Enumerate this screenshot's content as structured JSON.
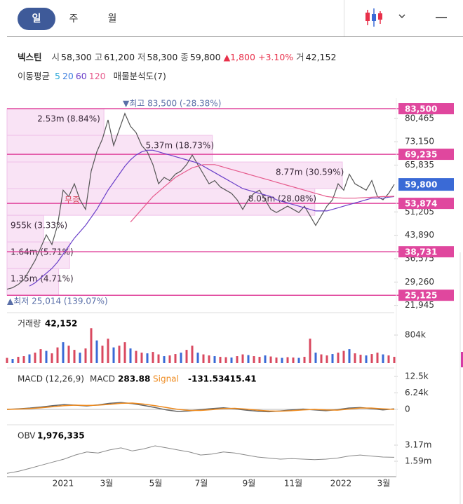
{
  "header": {
    "tabs": [
      "일",
      "주",
      "월"
    ],
    "quote": {
      "name": "넥스틴",
      "fields": [
        {
          "label": "시",
          "value": "58,300"
        },
        {
          "label": "고",
          "value": "61,200"
        },
        {
          "label": "저",
          "value": "58,300"
        },
        {
          "label": "종",
          "value": "59,800"
        }
      ],
      "change": "▲1,800",
      "change_pct": "+3.10%",
      "volume_label": "거",
      "volume": "42,152"
    },
    "moving_average": {
      "label": "이동평균",
      "periods": [
        {
          "label": "5",
          "color": "#2aa7d8"
        },
        {
          "label": "20",
          "color": "#3f80e0"
        },
        {
          "label": "60",
          "color": "#6a3fc9"
        },
        {
          "label": "120",
          "color": "#e65a8c"
        }
      ],
      "profile_label": "매물분석도(7)"
    }
  },
  "chart_data": [
    {
      "type": "line",
      "name": "price",
      "ylim": [
        21000,
        85700
      ],
      "yticks": [
        {
          "value": 80465,
          "label": "80,465"
        },
        {
          "value": 73150,
          "label": "73,150"
        },
        {
          "value": 65835,
          "label": "65,835"
        },
        {
          "value": 51205,
          "label": "51,205"
        },
        {
          "value": 43890,
          "label": "43,890"
        },
        {
          "value": 36575,
          "label": "36,575"
        },
        {
          "value": 29260,
          "label": "29,260"
        },
        {
          "value": 21945,
          "label": "21,945"
        }
      ],
      "levels": [
        {
          "value": 83500,
          "label": "83,500"
        },
        {
          "value": 69235,
          "label": "69,235"
        },
        {
          "value": 53874,
          "label": "53,874"
        },
        {
          "value": 38731,
          "label": "38,731"
        },
        {
          "value": 25125,
          "label": "25,125"
        }
      ],
      "level_color": "#e0479e",
      "current": {
        "value": 59800,
        "label": "59,800",
        "color": "#3a6ad6"
      },
      "profile": [
        {
          "label": "2.53m (8.84%)",
          "percent": 8.84
        },
        {
          "label": "5.37m (18.73%)",
          "percent": 18.73
        },
        {
          "label": "8.77m (30.59%)",
          "percent": 30.59
        },
        {
          "label": "8.05m (28.08%)",
          "percent": 28.08
        },
        {
          "label": "955k (3.33%)",
          "percent": 3.33
        },
        {
          "label": "1.64m (5.71%)",
          "percent": 5.71
        },
        {
          "label": "1.35m (4.71%)",
          "percent": 4.71
        }
      ],
      "annotations": {
        "high": "▼최고 83,500 (-28.38%)",
        "low": "▲최저 25,014 (139.07%)",
        "event": "무증"
      },
      "series": [
        {
          "name": "price",
          "color": "#555555",
          "values": [
            27000,
            27500,
            28500,
            30000,
            33000,
            36000,
            40000,
            44000,
            41000,
            47000,
            58000,
            56000,
            60000,
            55000,
            52000,
            64000,
            70000,
            74000,
            80000,
            72000,
            77000,
            82000,
            78000,
            76000,
            72000,
            70000,
            66000,
            60000,
            62000,
            61000,
            63000,
            64000,
            66000,
            69000,
            66000,
            63000,
            60000,
            61000,
            59000,
            58000,
            57000,
            55000,
            52000,
            55000,
            57000,
            58000,
            55000,
            52000,
            51000,
            52000,
            53000,
            52000,
            51000,
            53000,
            50000,
            47000,
            50000,
            53000,
            55000,
            60000,
            58000,
            63000,
            60000,
            59000,
            58000,
            61000,
            56000,
            55000,
            57000,
            59800
          ]
        },
        {
          "name": "ma60",
          "color": "#6a3fc9",
          "values": [
            null,
            null,
            null,
            null,
            28000,
            29000,
            30500,
            32000,
            33500,
            35500,
            38000,
            40500,
            43000,
            45000,
            47000,
            49500,
            52000,
            55000,
            58000,
            60500,
            63000,
            65500,
            67500,
            69000,
            70000,
            70500,
            70500,
            70000,
            69500,
            69000,
            68500,
            68000,
            67500,
            67000,
            66500,
            65500,
            64500,
            63500,
            62500,
            61500,
            60500,
            59500,
            58500,
            58000,
            57500,
            57000,
            56500,
            56000,
            55000,
            54500,
            54000,
            53500,
            53000,
            52500,
            52000,
            51500,
            51500,
            51500,
            52000,
            52500,
            53000,
            53500,
            54000,
            54500,
            55000,
            55500,
            55500,
            55500,
            55800,
            56000
          ]
        },
        {
          "name": "ma120",
          "color": "#e65a8c",
          "values": [
            null,
            null,
            null,
            null,
            null,
            null,
            null,
            null,
            null,
            null,
            null,
            null,
            null,
            null,
            null,
            null,
            null,
            null,
            null,
            null,
            null,
            null,
            48000,
            50000,
            52000,
            54000,
            56000,
            57500,
            59000,
            60500,
            62000,
            63000,
            64000,
            65000,
            65500,
            66000,
            66000,
            66000,
            65500,
            65000,
            64500,
            64000,
            63500,
            63000,
            62500,
            62000,
            61500,
            61000,
            60500,
            60000,
            59500,
            59000,
            58500,
            58000,
            57500,
            57000,
            56500,
            56000,
            55800,
            55600,
            55500,
            55500,
            55500,
            55600,
            55700,
            55800,
            55900,
            56000,
            56000,
            56100
          ]
        }
      ],
      "xaxis_labels": [
        "2021",
        "3월",
        "5월",
        "7월",
        "9월",
        "11월",
        "2022",
        "3월"
      ]
    },
    {
      "type": "bar",
      "name": "volume",
      "title": "거래량",
      "value_text": "42,152",
      "color": "#d9485f",
      "ylim": [
        0,
        1065000
      ],
      "yticks": [
        {
          "value": 804000,
          "label": "804k"
        }
      ],
      "values": [
        150000,
        120000,
        180000,
        200000,
        250000,
        300000,
        400000,
        350000,
        280000,
        450000,
        600000,
        500000,
        380000,
        300000,
        420000,
        1000000,
        650000,
        500000,
        700000,
        450000,
        500000,
        600000,
        420000,
        350000,
        300000,
        280000,
        320000,
        250000,
        200000,
        220000,
        260000,
        300000,
        380000,
        500000,
        300000,
        250000,
        220000,
        200000,
        180000,
        170000,
        160000,
        200000,
        250000,
        230000,
        200000,
        180000,
        220000,
        190000,
        160000,
        150000,
        170000,
        160000,
        150000,
        180000,
        700000,
        300000,
        250000,
        220000,
        260000,
        300000,
        350000,
        400000,
        280000,
        240000,
        220000,
        260000,
        300000,
        250000,
        220000,
        180000
      ]
    },
    {
      "type": "line",
      "name": "macd",
      "title": "MACD (12,26,9)",
      "ylim": [
        -4255,
        14360
      ],
      "yticks": [
        {
          "value": 12500,
          "label": "12.5k"
        },
        {
          "value": 6240,
          "label": "6.24k"
        },
        0
      ],
      "series": [
        {
          "name": "MACD",
          "value_text": "283.88",
          "color": "#666666",
          "values": [
            0,
            200,
            500,
            900,
            1400,
            1800,
            1600,
            1300,
            1700,
            2300,
            2600,
            2200,
            1500,
            700,
            -200,
            -800,
            -600,
            -100,
            300,
            600,
            200,
            -300,
            -700,
            -900,
            -600,
            -200,
            100,
            -200,
            -500,
            -100,
            500,
            700,
            300,
            -200,
            200
          ]
        },
        {
          "name": "Signal",
          "value_text": "-131.53415.41",
          "color": "#ee8a1e",
          "values": [
            0,
            100,
            300,
            600,
            1000,
            1400,
            1600,
            1500,
            1600,
            1900,
            2300,
            2400,
            2000,
            1400,
            700,
            0,
            -400,
            -400,
            -100,
            300,
            400,
            100,
            -300,
            -600,
            -700,
            -500,
            -200,
            0,
            -200,
            -300,
            100,
            500,
            500,
            200,
            0
          ]
        }
      ]
    },
    {
      "type": "line",
      "name": "obv",
      "title": "OBV",
      "value_text": "1,976,335",
      "ylim": [
        80000,
        4750000
      ],
      "yticks": [
        {
          "value": 3170000,
          "label": "3.17m"
        },
        {
          "value": 1590000,
          "label": "1.59m"
        }
      ],
      "series": [
        {
          "name": "OBV",
          "color": "#888888",
          "values": [
            400000,
            600000,
            900000,
            1200000,
            1500000,
            1800000,
            2200000,
            2500000,
            2400000,
            2700000,
            2900000,
            2600000,
            2800000,
            3100000,
            2900000,
            2700000,
            2500000,
            2200000,
            2300000,
            2500000,
            2400000,
            2200000,
            2000000,
            1900000,
            1800000,
            1850000,
            1800000,
            1750000,
            1800000,
            1900000,
            2100000,
            2200000,
            2100000,
            2000000,
            1976335
          ]
        }
      ]
    }
  ]
}
